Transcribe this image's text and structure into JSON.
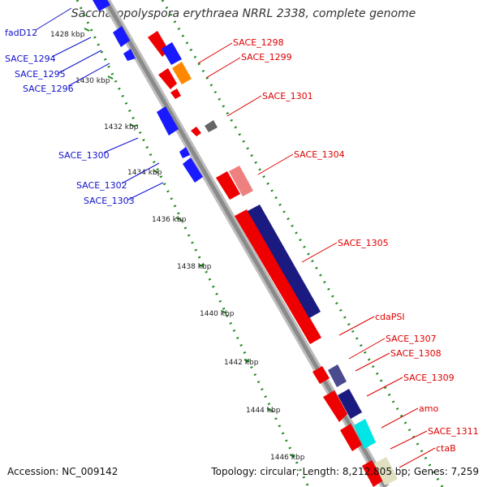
{
  "title": "Saccharopolyspora erythraea NRRL 2338, complete genome",
  "footer": {
    "accession": "Accession: NC_009142",
    "topology": "Topology: circular; Length: 8,212,805 bp; Genes: 7,259"
  },
  "colors": {
    "forward_label": "#1111cc",
    "reverse_label": "#dd0000",
    "tick_dots": "#228b22",
    "backbone": "#888888"
  },
  "ticks": [
    "1428 kbp",
    "1430 kbp",
    "1432 kbp",
    "1434 kbp",
    "1436 kbp",
    "1438 kbp",
    "1440 kbp",
    "1442 kbp",
    "1444 kbp",
    "1446 kbp"
  ],
  "left_labels": [
    "fadD12",
    "SACE_1294",
    "SACE_1295",
    "SACE_1296",
    "SACE_1300",
    "SACE_1302",
    "SACE_1303"
  ],
  "right_labels": [
    "SACE_1298",
    "SACE_1299",
    "SACE_1301",
    "SACE_1304",
    "SACE_1305",
    "cdaPSI",
    "SACE_1307",
    "SACE_1308",
    "SACE_1309",
    "amo",
    "SACE_1311",
    "ctaB"
  ]
}
